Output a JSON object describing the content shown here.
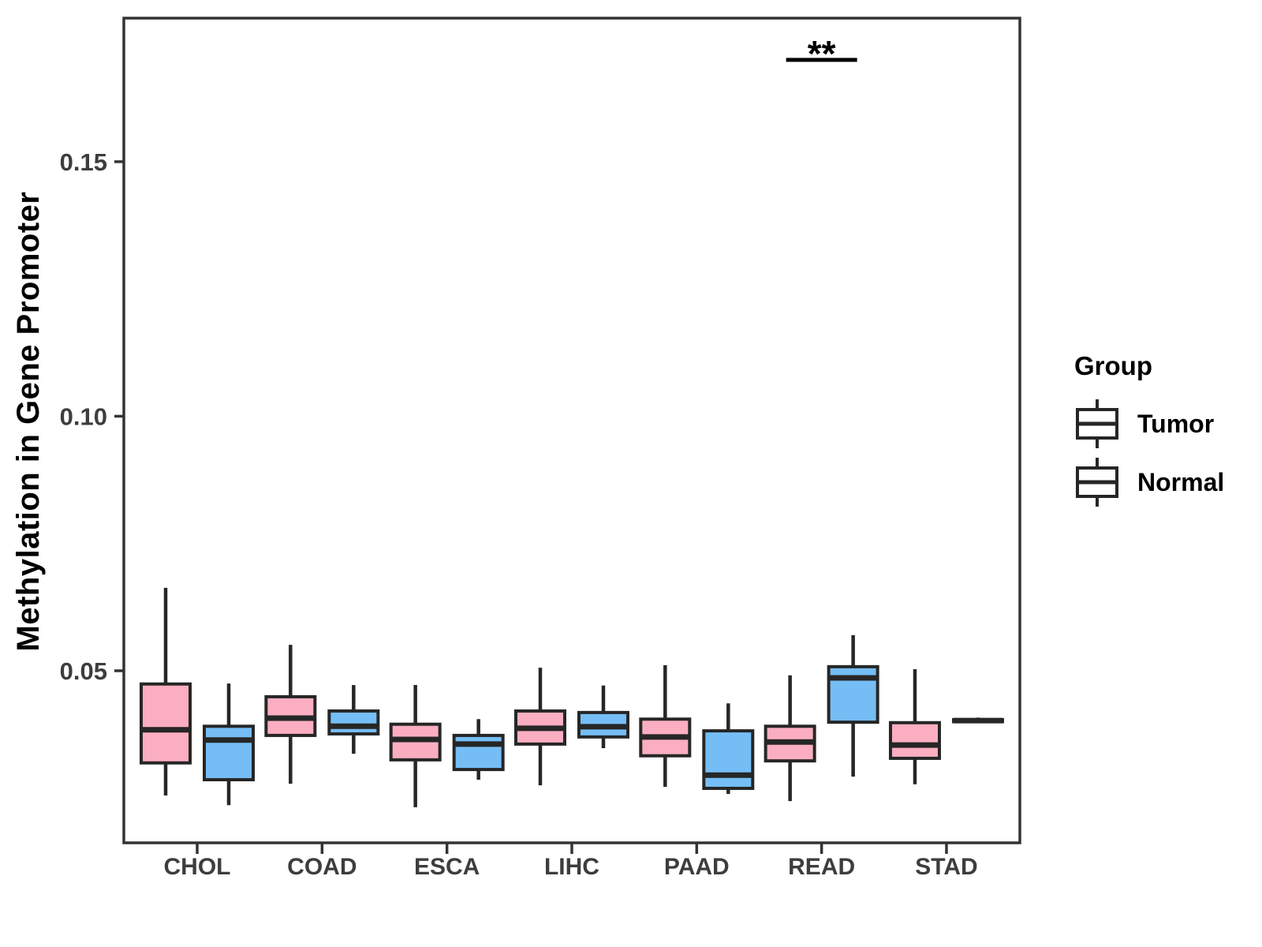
{
  "figure": {
    "background": "#ffffff"
  },
  "legend": {
    "title": "Group",
    "entries": [
      {
        "label": "Tumor",
        "color": "#FBAEC1"
      },
      {
        "label": "Normal",
        "color": "#75BEF5"
      }
    ]
  },
  "chart_data": {
    "type": "boxplot",
    "title": "",
    "xlabel": "",
    "ylabel": "Methylation in Gene Promoter",
    "categories": [
      "CHOL",
      "COAD",
      "ESCA",
      "LIHC",
      "PAAD",
      "READ",
      "STAD"
    ],
    "series": [
      {
        "name": "Tumor",
        "color": "#FBAEC1",
        "boxes": [
          {
            "min": 0.0255,
            "q1": 0.0319,
            "median": 0.0384,
            "q3": 0.0474,
            "max": 0.0663
          },
          {
            "min": 0.0278,
            "q1": 0.0373,
            "median": 0.0407,
            "q3": 0.0449,
            "max": 0.0551
          },
          {
            "min": 0.0232,
            "q1": 0.0325,
            "median": 0.0365,
            "q3": 0.0395,
            "max": 0.0472
          },
          {
            "min": 0.0275,
            "q1": 0.0356,
            "median": 0.0387,
            "q3": 0.0421,
            "max": 0.0506
          },
          {
            "min": 0.0272,
            "q1": 0.0333,
            "median": 0.037,
            "q3": 0.0405,
            "max": 0.0511
          },
          {
            "min": 0.0244,
            "q1": 0.0323,
            "median": 0.036,
            "q3": 0.0391,
            "max": 0.0491
          },
          {
            "min": 0.0277,
            "q1": 0.0328,
            "median": 0.0354,
            "q3": 0.0398,
            "max": 0.0503
          }
        ]
      },
      {
        "name": "Normal",
        "color": "#75BEF5",
        "boxes": [
          {
            "min": 0.0236,
            "q1": 0.0286,
            "median": 0.0364,
            "q3": 0.0391,
            "max": 0.0475
          },
          {
            "min": 0.0337,
            "q1": 0.0376,
            "median": 0.0391,
            "q3": 0.0421,
            "max": 0.0472
          },
          {
            "min": 0.0286,
            "q1": 0.0306,
            "median": 0.0356,
            "q3": 0.0373,
            "max": 0.0405
          },
          {
            "min": 0.0348,
            "q1": 0.037,
            "median": 0.039,
            "q3": 0.0418,
            "max": 0.0471
          },
          {
            "min": 0.0258,
            "q1": 0.0269,
            "median": 0.0295,
            "q3": 0.0382,
            "max": 0.0436
          },
          {
            "min": 0.0292,
            "q1": 0.0399,
            "median": 0.0486,
            "q3": 0.0508,
            "max": 0.057
          },
          {
            "min": 0.0398,
            "q1": 0.04,
            "median": 0.0402,
            "q3": 0.0404,
            "max": 0.0408
          }
        ]
      }
    ],
    "ylim": [
      0.0162,
      0.1782
    ],
    "yticks": [
      {
        "value": 0.05,
        "label": "0.05"
      },
      {
        "value": 0.1,
        "label": "0.10"
      },
      {
        "value": 0.15,
        "label": "0.15"
      }
    ],
    "grid": false,
    "legend_position": "right",
    "annotation": {
      "text": "**",
      "category": "READ",
      "bar_y": 0.17
    },
    "colors": {
      "box_stroke": "#262626",
      "panel_border": "#333333",
      "tick_label": "#3d3d3d",
      "annotation": "#000000"
    }
  }
}
